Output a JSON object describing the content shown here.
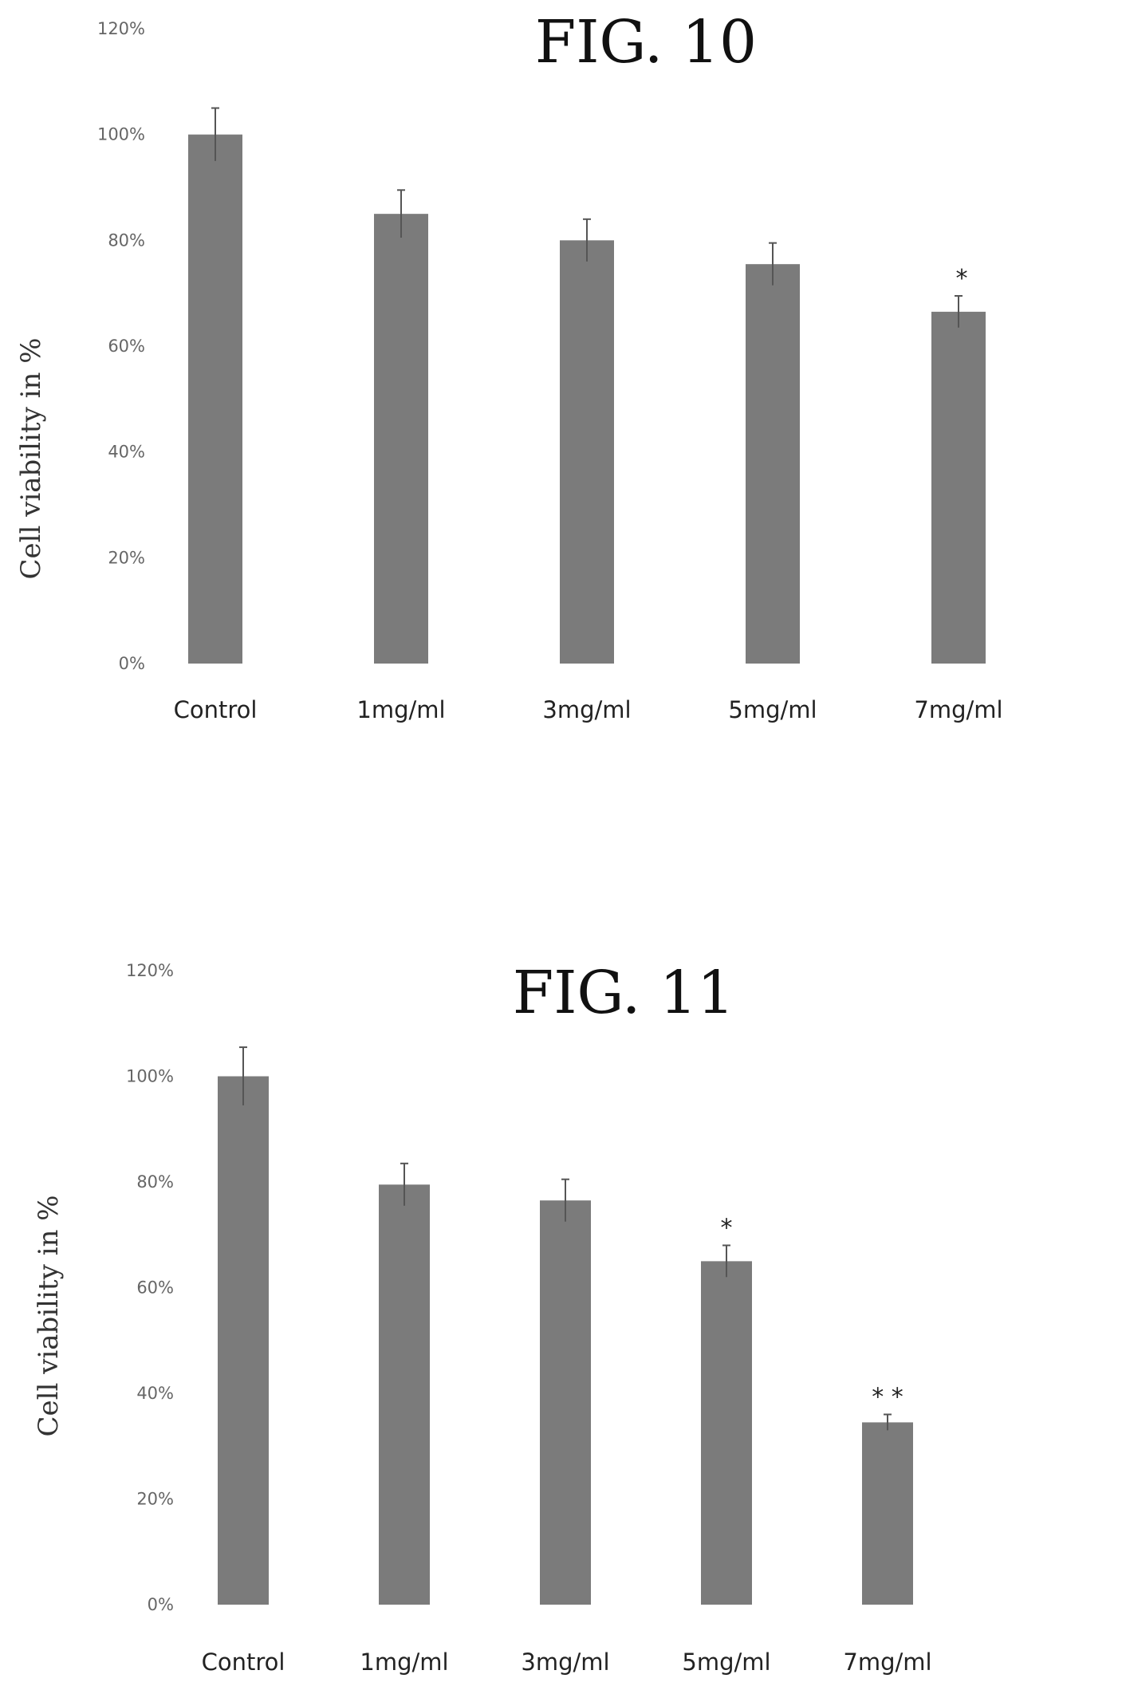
{
  "chart_data": [
    {
      "type": "bar",
      "title": "FIG. 10",
      "xlabel": "",
      "ylabel": "Cell viability in %",
      "categories": [
        "Control",
        "1mg/ml",
        "3mg/ml",
        "5mg/ml",
        "7mg/ml"
      ],
      "values": [
        100,
        85,
        80,
        75.5,
        66.5
      ],
      "errors": [
        5,
        4.5,
        4,
        4,
        3
      ],
      "significance": [
        "",
        "",
        "",
        "",
        "*"
      ],
      "ylim": [
        0,
        120
      ],
      "yticks": [
        0,
        20,
        40,
        60,
        80,
        100,
        120
      ],
      "ytick_labels": [
        "0%",
        "20%",
        "40%",
        "60%",
        "80%",
        "100%",
        "120%"
      ],
      "grid": false,
      "bar_color": "#7b7b7b"
    },
    {
      "type": "bar",
      "title": "FIG. 11",
      "xlabel": "",
      "ylabel": "Cell viability in %",
      "categories": [
        "Control",
        "1mg/ml",
        "3mg/ml",
        "5mg/ml",
        "7mg/ml"
      ],
      "values": [
        100,
        79.5,
        76.5,
        65,
        34.5
      ],
      "errors": [
        5.5,
        4,
        4,
        3,
        1.5
      ],
      "significance": [
        "",
        "",
        "",
        "*",
        "* *"
      ],
      "ylim": [
        0,
        120
      ],
      "yticks": [
        0,
        20,
        40,
        60,
        80,
        100,
        120
      ],
      "ytick_labels": [
        "0%",
        "20%",
        "40%",
        "60%",
        "80%",
        "100%",
        "120%"
      ],
      "grid": false,
      "bar_color": "#7b7b7b"
    }
  ]
}
